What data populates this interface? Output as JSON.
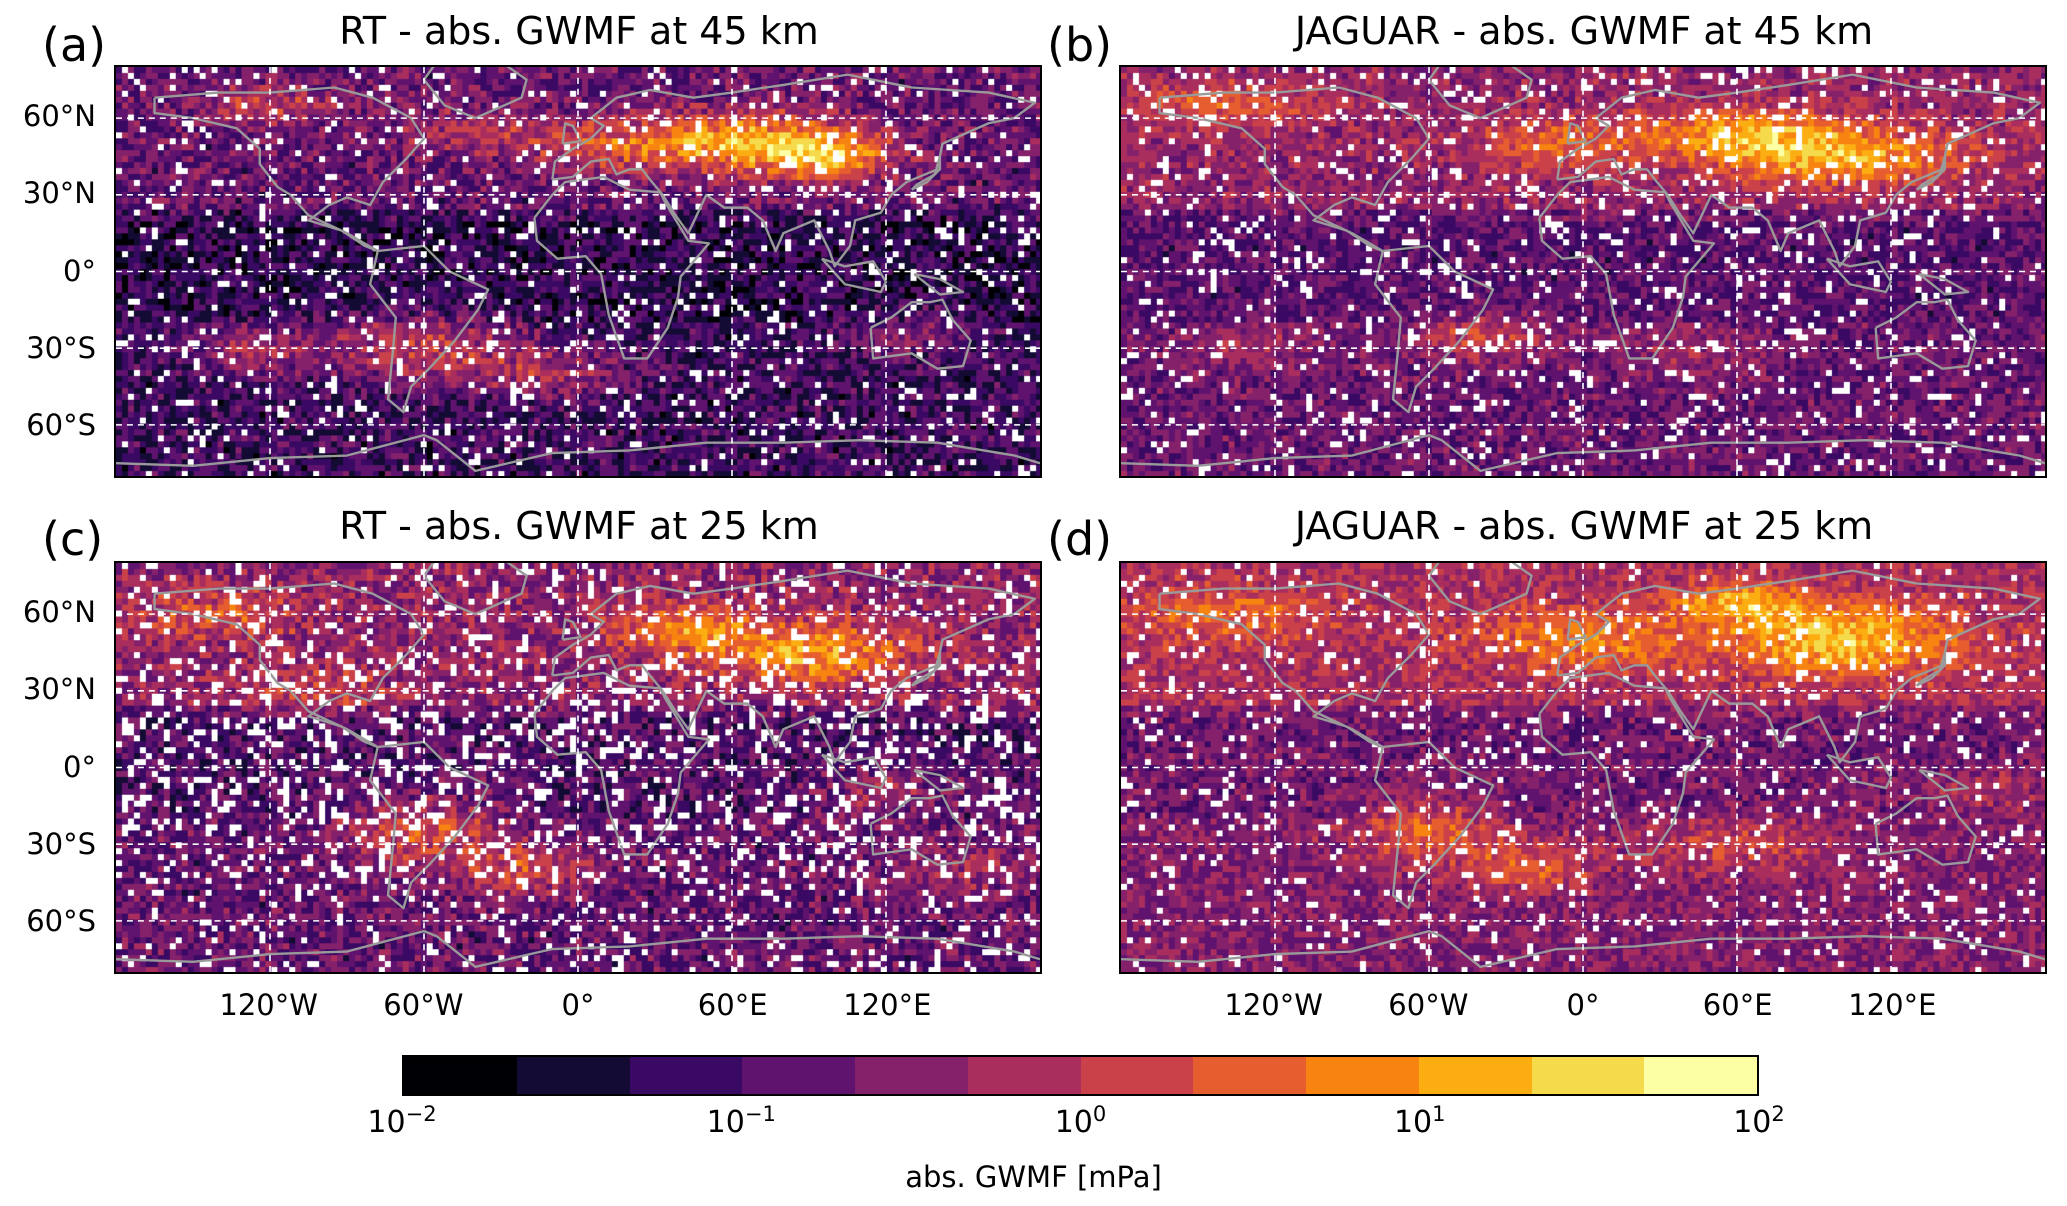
{
  "chart_data": {
    "type": "heatmap",
    "panels": [
      {
        "letter": "(a)",
        "title": "RT - abs. GWMF at 45 km",
        "show_xticks": false,
        "style": "rt45"
      },
      {
        "letter": "(b)",
        "title": "JAGUAR - abs. GWMF at 45 km",
        "show_xticks": false,
        "style": "jag45"
      },
      {
        "letter": "(c)",
        "title": "RT - abs. GWMF at 25 km",
        "show_xticks": true,
        "style": "rt25"
      },
      {
        "letter": "(d)",
        "title": "JAGUAR - abs. GWMF at 25 km",
        "show_xticks": true,
        "style": "jag25"
      }
    ],
    "x_axis": {
      "range": [
        -180,
        180
      ],
      "ticks": [
        -120,
        -60,
        0,
        60,
        120
      ],
      "tick_labels": [
        "120°W",
        "60°W",
        "0°",
        "60°E",
        "120°E"
      ]
    },
    "y_axis": {
      "range": [
        -80,
        80
      ],
      "ticks": [
        60,
        30,
        0,
        -30,
        -60
      ],
      "tick_labels": [
        "60°N",
        "30°N",
        "0°",
        "30°S",
        "60°S"
      ]
    },
    "grid": true,
    "grid_style": "dashed white",
    "coastlines": "gray",
    "colorbar": {
      "label": "abs. GWMF [mPa]",
      "scale": "log",
      "range": [
        0.01,
        100
      ],
      "ticks": [
        0.01,
        0.1,
        1,
        10,
        100
      ],
      "tick_labels": [
        {
          "base": "10",
          "exp": "−2"
        },
        {
          "base": "10",
          "exp": "−1"
        },
        {
          "base": "10",
          "exp": "0"
        },
        {
          "base": "10",
          "exp": "1"
        },
        {
          "base": "10",
          "exp": "2"
        }
      ],
      "colors": [
        "#000004",
        "#140b34",
        "#390963",
        "#5f136e",
        "#85216b",
        "#a92e5e",
        "#cb4149",
        "#e65d2f",
        "#f78311",
        "#fcad12",
        "#f5db4b",
        "#fcffa4"
      ],
      "missing_color": "#ffffff"
    }
  }
}
